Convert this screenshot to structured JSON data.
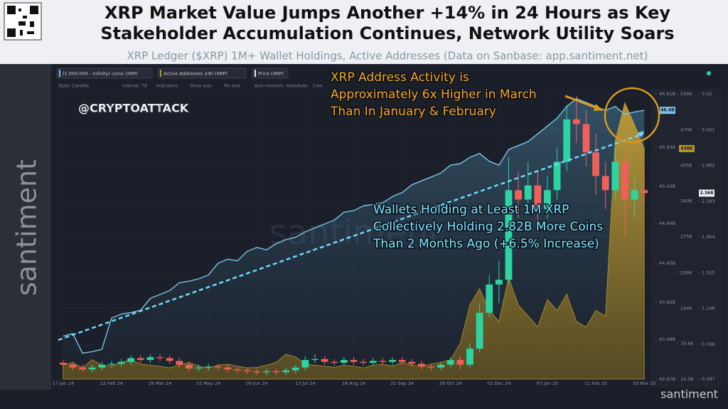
{
  "header": {
    "title_lines": [
      "XRP Market Value Jumps Another +14% in 24 Hours as Key",
      "Stakeholder Accumulation Continues, Network Utility Soars"
    ],
    "subtitle": "XRP Ledger ($XRP) 1M+ Wallet Holdings, Active Addresses (Data on Sanbase: app.santiment.net)"
  },
  "toolbar": {
    "metrics": [
      "[1,000,000 - infinity) coins (XRP)",
      "Active Addresses 24h (XRP)",
      "Price (XRP)"
    ],
    "settings": [
      "Style: Candles",
      "Interval: 7d",
      "Indicators:",
      "Show axis",
      "Pin axis",
      "Axis max/min: Auto/Auto",
      "Com"
    ]
  },
  "watermarks": {
    "handle": "@CRYPTOATTACK",
    "side": "santiment",
    "center": "santiment",
    "corner": "santiment"
  },
  "annotations": [
    {
      "lines": [
        "XRP Address Activity is",
        "Approximately 6x Higher in March",
        "Than In January & February"
      ],
      "color": "#f5a623"
    },
    {
      "lines": [
        "Wallets Holding at Least 1M XRP",
        "Collectively Holding 2.82B More Coins",
        "Than 2 Months Ago (+6.5% Increase)"
      ],
      "color": "#7fe6ff"
    }
  ],
  "chart_data": {
    "type": "candlestick",
    "grid": true,
    "categories": [
      "17 Jan 24",
      null,
      null,
      null,
      null,
      "22 Feb 24",
      null,
      null,
      null,
      null,
      "29 Mar 24",
      null,
      null,
      null,
      null,
      "03 May 24",
      null,
      null,
      null,
      null,
      "09 Jun 24",
      null,
      null,
      null,
      null,
      "13 Jul 24",
      null,
      null,
      null,
      null,
      "18 Aug 24",
      null,
      null,
      null,
      null,
      "22 Sep 24",
      null,
      null,
      null,
      null,
      "28 Oct 24",
      null,
      null,
      null,
      null,
      "02 Dec 24",
      null,
      null,
      null,
      null,
      "07 Jan 25",
      null,
      null,
      null,
      null,
      "11 Feb 25",
      null,
      null,
      null,
      null,
      "19 Mar 25"
    ],
    "ylim": [
      42.97,
      46.61
    ],
    "yticks": [
      {
        "value": 42.97,
        "label": "42.97B"
      },
      {
        "value": 43.48,
        "label": "43.48B"
      },
      {
        "value": 43.95,
        "label": "43.95B"
      },
      {
        "value": 44.45,
        "label": "44.45B"
      },
      {
        "value": 44.96,
        "label": "44.96B"
      },
      {
        "value": 45.43,
        "label": "45.43B"
      },
      {
        "value": 45.93,
        "label": "45.93B"
      },
      {
        "value": 46.61,
        "label": "46.61B"
      }
    ],
    "y2lim": [
      14.5,
      536
    ],
    "y2ticks": [
      {
        "value": 14.5,
        "label": "14.5K"
      },
      {
        "value": 79.6,
        "label": "79.6K"
      },
      {
        "value": 144,
        "label": "144K"
      },
      {
        "value": 209,
        "label": "209K"
      },
      {
        "value": 275,
        "label": "275K"
      },
      {
        "value": 340,
        "label": "340K"
      },
      {
        "value": 405,
        "label": "405K"
      },
      {
        "value": 470,
        "label": "470K"
      },
      {
        "value": 536,
        "label": "536K"
      }
    ],
    "y3lim": [
      0.397,
      3.42
    ],
    "y3ticks": [
      0.397,
      0.766,
      1.146,
      1.525,
      1.904,
      2.283,
      2.662,
      3.041,
      3.42
    ],
    "series": [
      {
        "name": "[1,000,000 - infinity) coins (XRP)",
        "type": "line",
        "axis": "y",
        "color": "#7cc4e4",
        "last_value": {
          "value": 46.4,
          "label": "46.4B"
        },
        "values": [
          43.52,
          43.55,
          43.3,
          43.32,
          43.35,
          43.75,
          43.8,
          43.82,
          43.85,
          44.0,
          44.05,
          44.1,
          44.2,
          44.22,
          44.25,
          44.3,
          44.45,
          44.5,
          44.48,
          44.6,
          44.65,
          44.62,
          44.7,
          44.75,
          44.78,
          44.85,
          44.9,
          44.95,
          45.0,
          45.1,
          45.12,
          45.18,
          45.2,
          45.22,
          45.3,
          45.35,
          45.45,
          45.5,
          45.55,
          45.6,
          45.7,
          45.72,
          45.8,
          45.85,
          45.75,
          45.7,
          45.9,
          45.95,
          46.0,
          46.1,
          46.2,
          46.3,
          46.45,
          46.55,
          46.5,
          46.45,
          46.4,
          46.45,
          46.35,
          46.38,
          46.4
        ]
      },
      {
        "name": "Active Addresses 24h (XRP)",
        "type": "area",
        "axis": "y2",
        "color": "#b8962c",
        "last_value": {
          "value": 436,
          "label": "436K"
        },
        "values": [
          40,
          45,
          35,
          50,
          40,
          38,
          45,
          50,
          42,
          40,
          38,
          35,
          40,
          45,
          38,
          35,
          40,
          42,
          38,
          35,
          36,
          40,
          45,
          60,
          55,
          42,
          40,
          38,
          36,
          40,
          38,
          35,
          40,
          42,
          38,
          45,
          40,
          38,
          42,
          45,
          50,
          80,
          150,
          180,
          140,
          120,
          200,
          150,
          130,
          110,
          160,
          140,
          170,
          120,
          110,
          140,
          130,
          450,
          520,
          480,
          436
        ]
      }
    ],
    "candles": {
      "name": "Price (XRP)",
      "axis": "y3",
      "up_color": "#2ed3a2",
      "down_color": "#f0605a",
      "last_value": {
        "value": 2.368,
        "label": "2.368"
      },
      "open": [
        0.57,
        0.55,
        0.52,
        0.5,
        0.52,
        0.55,
        0.56,
        0.58,
        0.62,
        0.6,
        0.63,
        0.62,
        0.59,
        0.55,
        0.51,
        0.52,
        0.53,
        0.52,
        0.5,
        0.49,
        0.48,
        0.47,
        0.48,
        0.47,
        0.49,
        0.52,
        0.6,
        0.61,
        0.58,
        0.57,
        0.6,
        0.58,
        0.57,
        0.59,
        0.58,
        0.6,
        0.58,
        0.56,
        0.53,
        0.52,
        0.55,
        0.6,
        0.55,
        0.72,
        1.1,
        1.4,
        1.45,
        2.4,
        2.3,
        2.45,
        2.2,
        2.4,
        2.7,
        3.15,
        3.1,
        2.8,
        2.55,
        2.4,
        2.7,
        2.3,
        2.4
      ],
      "high": [
        0.6,
        0.58,
        0.55,
        0.55,
        0.58,
        0.59,
        0.61,
        0.65,
        0.65,
        0.66,
        0.66,
        0.65,
        0.62,
        0.58,
        0.55,
        0.56,
        0.56,
        0.55,
        0.53,
        0.52,
        0.51,
        0.51,
        0.51,
        0.52,
        0.55,
        0.64,
        0.66,
        0.64,
        0.61,
        0.63,
        0.63,
        0.61,
        0.62,
        0.62,
        0.63,
        0.63,
        0.61,
        0.59,
        0.56,
        0.58,
        0.63,
        0.64,
        0.78,
        1.2,
        1.5,
        1.65,
        2.75,
        2.6,
        2.7,
        2.6,
        2.55,
        2.85,
        3.3,
        3.4,
        3.25,
        3.0,
        2.7,
        2.85,
        2.8,
        2.55,
        2.6
      ],
      "low": [
        0.52,
        0.49,
        0.47,
        0.47,
        0.49,
        0.52,
        0.53,
        0.55,
        0.57,
        0.57,
        0.59,
        0.56,
        0.52,
        0.48,
        0.48,
        0.49,
        0.49,
        0.47,
        0.46,
        0.45,
        0.44,
        0.44,
        0.44,
        0.44,
        0.46,
        0.49,
        0.57,
        0.55,
        0.54,
        0.54,
        0.55,
        0.54,
        0.54,
        0.55,
        0.55,
        0.55,
        0.53,
        0.5,
        0.49,
        0.49,
        0.52,
        0.5,
        0.52,
        0.68,
        1.05,
        1.2,
        1.4,
        2.1,
        2.2,
        1.95,
        2.1,
        2.3,
        2.6,
        2.9,
        2.65,
        2.35,
        2.2,
        2.3,
        1.9,
        2.1,
        2.25
      ],
      "close": [
        0.55,
        0.52,
        0.5,
        0.52,
        0.55,
        0.56,
        0.58,
        0.62,
        0.6,
        0.63,
        0.62,
        0.59,
        0.55,
        0.51,
        0.52,
        0.53,
        0.52,
        0.5,
        0.49,
        0.48,
        0.47,
        0.48,
        0.47,
        0.49,
        0.52,
        0.6,
        0.61,
        0.58,
        0.57,
        0.6,
        0.58,
        0.57,
        0.59,
        0.58,
        0.6,
        0.58,
        0.56,
        0.53,
        0.52,
        0.55,
        0.6,
        0.55,
        0.72,
        1.1,
        1.4,
        1.45,
        2.4,
        2.3,
        2.45,
        2.2,
        2.4,
        2.7,
        3.15,
        3.1,
        2.8,
        2.55,
        2.4,
        2.7,
        2.3,
        2.4,
        2.37
      ]
    }
  }
}
